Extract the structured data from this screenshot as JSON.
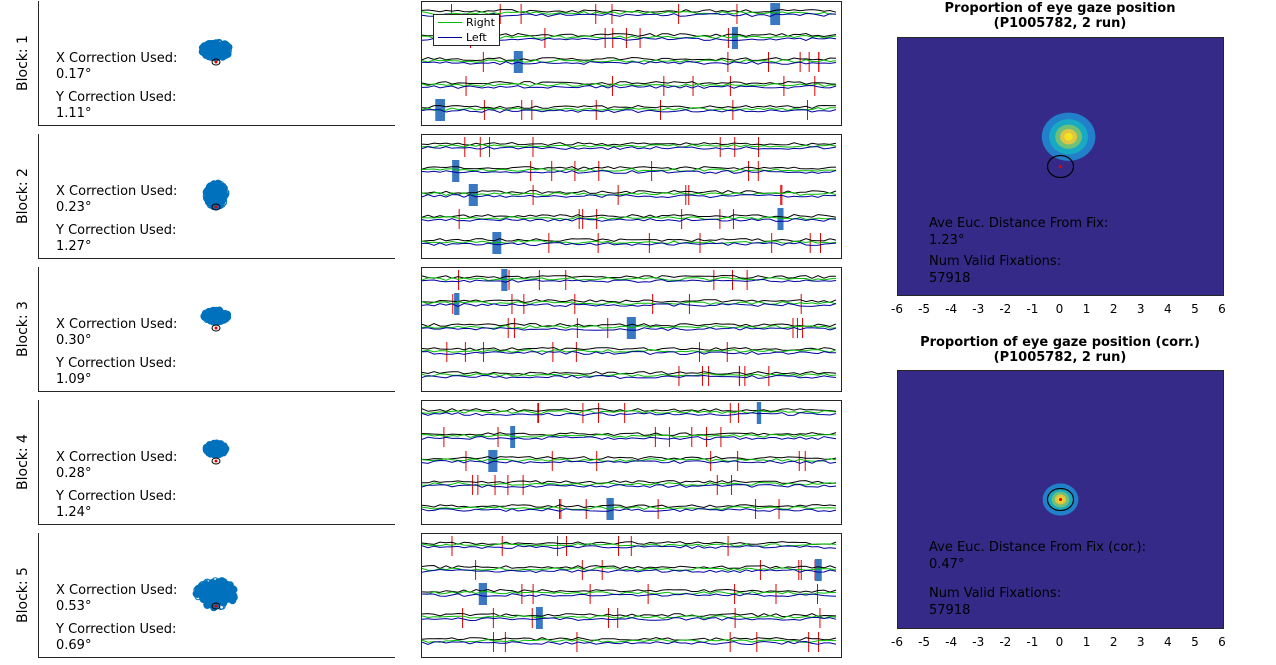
{
  "blocks": [
    {
      "label": "Block: 1",
      "x_caption": "X Correction Used:",
      "x_value": "0.17°",
      "y_caption": "Y Correction Used:",
      "y_value": "1.11°"
    },
    {
      "label": "Block: 2",
      "x_caption": "X Correction Used:",
      "x_value": "0.23°",
      "y_caption": "Y Correction Used:",
      "y_value": "1.27°"
    },
    {
      "label": "Block: 3",
      "x_caption": "X Correction Used:",
      "x_value": "0.30°",
      "y_caption": "Y Correction Used:",
      "y_value": "1.09°"
    },
    {
      "label": "Block: 4",
      "x_caption": "X Correction Used:",
      "x_value": "0.28°",
      "y_caption": "Y Correction Used:",
      "y_value": "1.24°"
    },
    {
      "label": "Block: 5",
      "x_caption": "X Correction Used:",
      "x_value": "0.53°",
      "y_caption": "Y Correction Used:",
      "y_value": "0.69°"
    }
  ],
  "legend": {
    "right": "Right",
    "left": "Left"
  },
  "colors": {
    "right": "#00c000",
    "left": "#0000a0",
    "black": "#000000",
    "red": "#e00000",
    "blink": "#3a78c2",
    "scatter": "#0072bd",
    "heat_bg": "#352a87"
  },
  "heatmaps": [
    {
      "title_line1": "Proportion of eye gaze position",
      "title_line2": "(P1005782, 2 run)",
      "dist_caption": "Ave Euc. Distance From Fix:",
      "dist_value": "1.23°",
      "fix_caption": "Num Valid Fixations:",
      "fix_value": "57918"
    },
    {
      "title_line1": "Proportion of eye gaze position (corr.)",
      "title_line2": "(P1005782, 2 run)",
      "dist_caption": "Ave Euc. Distance From Fix (cor.):",
      "dist_value": "0.47°",
      "fix_caption": "Num Valid Fixations:",
      "fix_value": "57918"
    }
  ],
  "chart_data": {
    "type": "heatmap",
    "xticks": [
      "-6",
      "-5",
      "-4",
      "-3",
      "-2",
      "-1",
      "0",
      "1",
      "2",
      "3",
      "4",
      "5",
      "6"
    ],
    "xlim": [
      -6,
      6
    ],
    "blobs": [
      {
        "panel": "uncorrected",
        "center": [
          0.3,
          1.1
        ],
        "spread": 0.45
      },
      {
        "panel": "corrected",
        "center": [
          0.0,
          0.0
        ],
        "spread": 0.3
      }
    ]
  }
}
